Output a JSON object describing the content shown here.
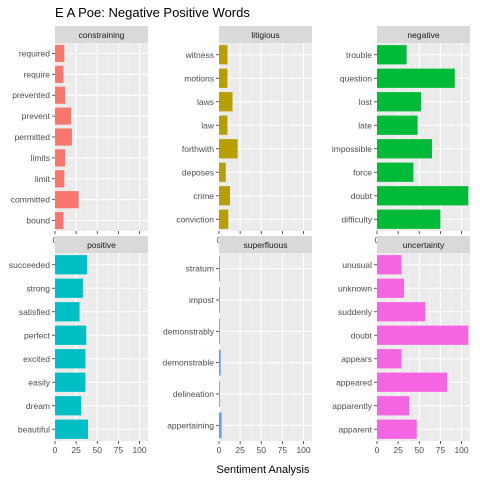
{
  "chart_data": {
    "type": "bar",
    "orientation": "horizontal",
    "title": "E A Poe: Negative  Positive Words",
    "xlabel": "Sentiment Analysis",
    "ylabel": "",
    "xlim": [
      0,
      110
    ],
    "xticks": [
      0,
      25,
      50,
      75,
      100
    ],
    "grid": true,
    "facets": [
      {
        "name": "constraining",
        "color": "#F8766D",
        "categories": [
          "required",
          "require",
          "prevented",
          "prevent",
          "permitted",
          "limits",
          "limit",
          "committed",
          "bound"
        ],
        "values": [
          11,
          10,
          12,
          19,
          20,
          12,
          11,
          28,
          10
        ]
      },
      {
        "name": "litigious",
        "color": "#B79F00",
        "categories": [
          "witness",
          "motions",
          "laws",
          "law",
          "forthwith",
          "deposes",
          "crime",
          "conviction"
        ],
        "values": [
          10,
          10,
          16,
          10,
          22,
          8,
          13,
          11
        ]
      },
      {
        "name": "negative",
        "color": "#00BA38",
        "categories": [
          "trouble",
          "question",
          "lost",
          "late",
          "impossible",
          "force",
          "doubt",
          "difficulty"
        ],
        "values": [
          35,
          92,
          52,
          48,
          65,
          43,
          108,
          75
        ]
      },
      {
        "name": "positive",
        "color": "#00BFC4",
        "categories": [
          "succeeded",
          "strong",
          "satisfied",
          "perfect",
          "excited",
          "easily",
          "dream",
          "beautiful"
        ],
        "values": [
          38,
          33,
          29,
          37,
          36,
          36,
          31,
          39
        ]
      },
      {
        "name": "superfluous",
        "color": "#619CFF",
        "categories": [
          "stratum",
          "impost",
          "demonstrably",
          "demonstrable",
          "delineation",
          "appertaining"
        ],
        "values": [
          1,
          1,
          1,
          2,
          1,
          3
        ]
      },
      {
        "name": "uncertainty",
        "color": "#F564E3",
        "categories": [
          "unusual",
          "unknown",
          "suddenly",
          "doubt",
          "appears",
          "appeared",
          "apparently",
          "apparent"
        ],
        "values": [
          29,
          32,
          57,
          108,
          29,
          83,
          38,
          47
        ]
      }
    ]
  }
}
